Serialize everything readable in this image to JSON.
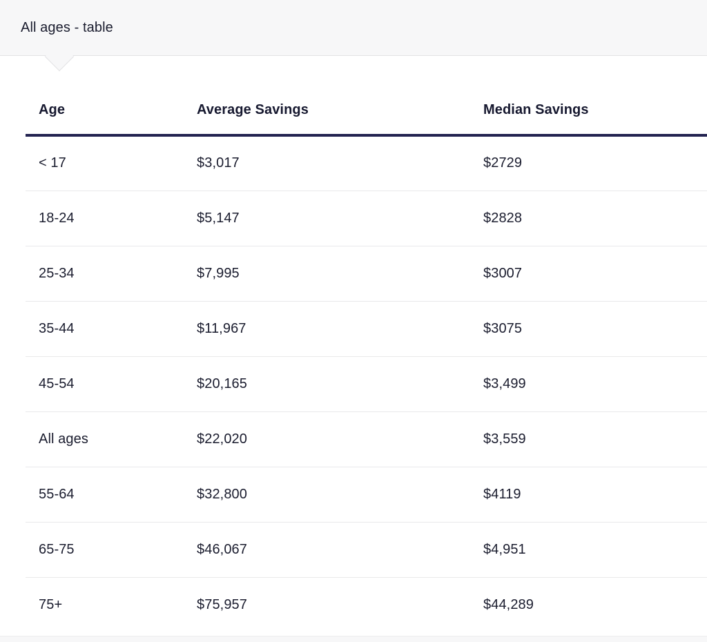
{
  "tab": {
    "label": "All ages - table"
  },
  "table": {
    "columns": [
      "Age",
      "Average Savings",
      "Median Savings"
    ],
    "rows": [
      [
        "< 17",
        "$3,017",
        "$2729"
      ],
      [
        "18-24",
        "$5,147",
        "$2828"
      ],
      [
        "25-34",
        "$7,995",
        "$3007"
      ],
      [
        "35-44",
        "$11,967",
        "$3075"
      ],
      [
        "45-54",
        "$20,165",
        "$3,499"
      ],
      [
        "All ages",
        "$22,020",
        "$3,559"
      ],
      [
        "55-64",
        "$32,800",
        "$4119"
      ],
      [
        "65-75",
        "$46,067",
        "$4,951"
      ],
      [
        "75+",
        "$75,957",
        "$44,289"
      ]
    ]
  },
  "colors": {
    "tab_background": "#f7f7f8",
    "tab_border": "#e2e2e4",
    "header_rule": "#232350",
    "row_divider": "#e9e9ea",
    "text": "#1a1c2e"
  },
  "chart_data": {
    "type": "table",
    "title": "All ages - table",
    "categories": [
      "< 17",
      "18-24",
      "25-34",
      "35-44",
      "45-54",
      "All ages",
      "55-64",
      "65-75",
      "75+"
    ],
    "series": [
      {
        "name": "Average Savings",
        "values": [
          3017,
          5147,
          7995,
          11967,
          20165,
          22020,
          32800,
          46067,
          75957
        ]
      },
      {
        "name": "Median Savings",
        "values": [
          2729,
          2828,
          3007,
          3075,
          3499,
          3559,
          4119,
          4951,
          44289
        ]
      }
    ]
  }
}
